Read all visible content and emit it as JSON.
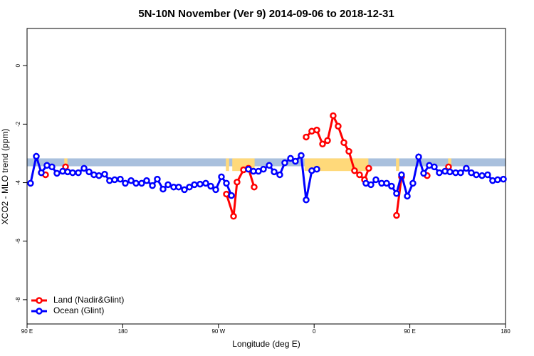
{
  "chart_data": {
    "type": "line",
    "title": "5N-10N November (Ver 9)   2014-09-06 to 2018-12-31",
    "x_label": "Longitude (deg E)",
    "y_label": "XCO2 - MLO trend (ppm)",
    "xlim": [
      90,
      540
    ],
    "ylim": [
      -8.83,
      1.27
    ],
    "xticks": [
      {
        "value": 90,
        "label": "90 E"
      },
      {
        "value": 180,
        "label": "180"
      },
      {
        "value": 270,
        "label": "90 W"
      },
      {
        "value": 360,
        "label": "0"
      },
      {
        "value": 450,
        "label": "90 E"
      },
      {
        "value": 540,
        "label": "180"
      }
    ],
    "yticks": [
      0,
      -2,
      -4,
      -6,
      -8
    ],
    "band": [
      -3.44,
      -3.17
    ],
    "band_color": "#a9c0dd",
    "land_spans": [
      [
        125,
        128
      ],
      [
        277,
        280
      ],
      [
        283,
        304
      ],
      [
        351,
        411
      ],
      [
        437,
        440
      ],
      [
        486,
        489
      ]
    ],
    "land_color": "#ffd97a",
    "legend": "bottom-left",
    "series": [
      {
        "name": "Land (Nadir&Glint)",
        "color": "#ff0000",
        "x": [
          103.4,
          107.4,
          null,
          126.2,
          null,
          277.5,
          284.2,
          287.5,
          293.6,
          298.2,
          303.6,
          null,
          352.5,
          357.8,
          362.5,
          367.9,
          372.6,
          377.9,
          382.6,
          388,
          392.7,
          398,
          402.7,
          407.4,
          411.4,
          null,
          437.5,
          442.2,
          null,
          466.3,
          null,
          486.4
        ],
        "values": [
          -3.66,
          -3.73,
          null,
          -3.46,
          null,
          -4.39,
          -5.15,
          -3.98,
          -3.56,
          -3.51,
          -4.15,
          null,
          -2.44,
          -2.24,
          -2.2,
          -2.68,
          -2.56,
          -1.71,
          -2.07,
          -2.63,
          -2.93,
          -3.59,
          -3.73,
          -3.9,
          -3.51,
          null,
          -5.12,
          -3.8,
          null,
          -3.76,
          null,
          -3.46
        ]
      },
      {
        "name": "Ocean (Glint)",
        "color": "#0000ff",
        "x": [
          93.3,
          98.7,
          103.4,
          108.7,
          113.4,
          118.1,
          123.5,
          128.2,
          132.9,
          138.2,
          143.6,
          148.3,
          152.9,
          157.6,
          163,
          167.6,
          172.4,
          177.7,
          182.4,
          187.8,
          192.5,
          197.8,
          202.5,
          207.9,
          212.5,
          217.9,
          222.6,
          227.9,
          232.6,
          238,
          242.7,
          247.4,
          252.7,
          258.1,
          262.8,
          267.5,
          272.8,
          277.5,
          282.2,
          null,
          298.2,
          302.9,
          307.6,
          312.3,
          317.7,
          322.4,
          327.7,
          332.4,
          337.8,
          342.4,
          347.8,
          352.5,
          357.8,
          362.5,
          null,
          408.7,
          413.4,
          418.1,
          423.5,
          428.2,
          432.8,
          437.5,
          442.2,
          447.6,
          452.9,
          458.3,
          463,
          468.3,
          473,
          477.7,
          483.1,
          487.7,
          493.1,
          497.8,
          503.1,
          507.8,
          512.5,
          517.9,
          523.2,
          527.9,
          532.6,
          538
        ],
        "values": [
          -4.02,
          -3.1,
          -3.66,
          -3.41,
          -3.46,
          -3.68,
          -3.61,
          -3.63,
          -3.66,
          -3.66,
          -3.51,
          -3.63,
          -3.73,
          -3.76,
          -3.71,
          -3.93,
          -3.9,
          -3.88,
          -4.02,
          -3.93,
          -4.02,
          -4.02,
          -3.93,
          -4.1,
          -3.88,
          -4.22,
          -4.07,
          -4.15,
          -4.15,
          -4.24,
          -4.15,
          -4.07,
          -4.05,
          -4.02,
          -4.12,
          -4.24,
          -3.8,
          -4.02,
          -4.44,
          null,
          -3.54,
          -3.61,
          -3.61,
          -3.54,
          -3.41,
          -3.63,
          -3.73,
          -3.32,
          -3.17,
          -3.27,
          -3.07,
          -4.59,
          -3.59,
          -3.54,
          null,
          -4.02,
          -4.07,
          -3.9,
          -4.02,
          -4.02,
          -4.12,
          -4.37,
          -3.73,
          -4.46,
          -4.02,
          -3.12,
          -3.68,
          -3.41,
          -3.46,
          -3.66,
          -3.61,
          -3.63,
          -3.66,
          -3.66,
          -3.51,
          -3.66,
          -3.73,
          -3.76,
          -3.73,
          -3.93,
          -3.9,
          -3.88
        ]
      }
    ]
  }
}
